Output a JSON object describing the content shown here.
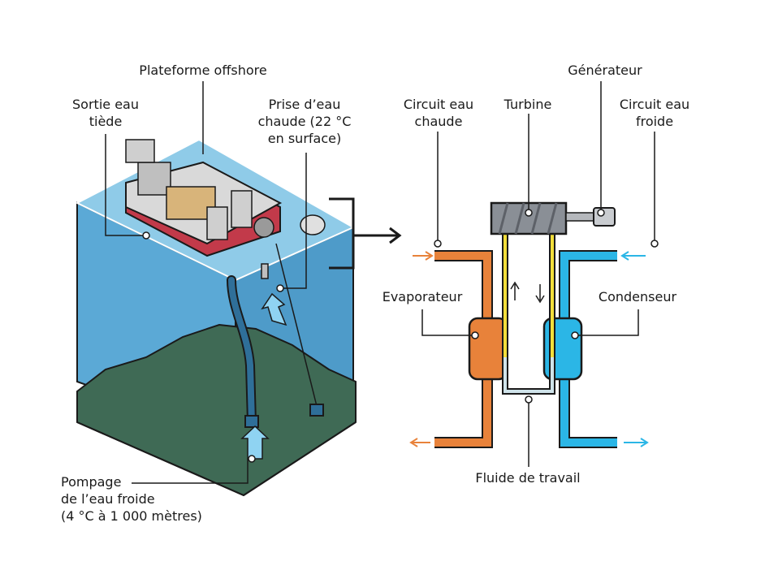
{
  "labels": {
    "platform": "Plateforme offshore",
    "warm_outlet": "Sortie eau\ntiède",
    "warm_intake": "Prise d’eau\nchaude (22 °C\nen surface)",
    "cold_pump": "Pompage\nde l’eau froide\n(4 °C à 1 000 mètres)",
    "warm_circuit": "Circuit eau\nchaude",
    "turbine": "Turbine",
    "generator": "Générateur",
    "cold_circuit": "Circuit eau\nfroide",
    "evaporator": "Evaporateur",
    "condenser": "Condenseur",
    "working_fluid": "Fluide de travail"
  },
  "colors": {
    "sea": "#5ba9d6",
    "sea_top": "#8fcbe8",
    "seabed": "#3f6a55",
    "warm": "#e8823a",
    "cold": "#2bb6e6",
    "fluid": "#f2de3a",
    "turbine": "#8a8f96",
    "outline": "#1a1a1a"
  },
  "icons": [
    "arrow-right-icon",
    "flow-up-arrow-icon"
  ]
}
